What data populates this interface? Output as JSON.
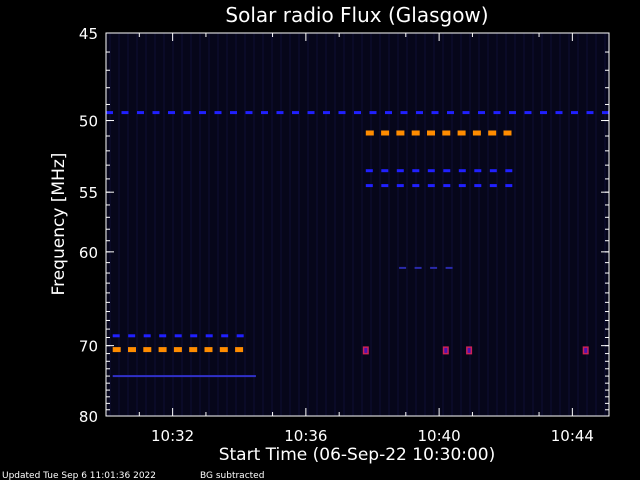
{
  "chart_data": {
    "type": "heatmap",
    "title": "Solar radio Flux (Glasgow)",
    "xlabel": "Start Time (06-Sep-22 10:30:00)",
    "ylabel": "Frequency [MHz]",
    "x_unit": "minutes after 10:30:00",
    "xlim": [
      0.0,
      15.1
    ],
    "ylim": [
      45,
      80
    ],
    "y_scale": "reciprocal",
    "x_ticks": [
      {
        "value": 2,
        "label": "10:32"
      },
      {
        "value": 6,
        "label": "10:36"
      },
      {
        "value": 10,
        "label": "10:40"
      },
      {
        "value": 14,
        "label": "10:44"
      }
    ],
    "y_ticks": [
      {
        "value": 45,
        "label": "45"
      },
      {
        "value": 50,
        "label": "50"
      },
      {
        "value": 55,
        "label": "55"
      },
      {
        "value": 60,
        "label": "60"
      },
      {
        "value": 70,
        "label": "70"
      },
      {
        "value": 80,
        "label": "80"
      }
    ],
    "features": [
      {
        "name": "band-49.5-full",
        "freq_mhz": 49.5,
        "t_start": 0.0,
        "t_end": 15.1,
        "level": "low",
        "color": "#2020ff",
        "dashed": true
      },
      {
        "name": "band-50.8-late",
        "freq_mhz": 50.8,
        "t_start": 7.8,
        "t_end": 12.5,
        "level": "high",
        "color": "#ff8c00",
        "dashed": true
      },
      {
        "name": "band-53.4-late",
        "freq_mhz": 53.4,
        "t_start": 7.8,
        "t_end": 12.5,
        "level": "low",
        "color": "#2020ff",
        "dashed": true
      },
      {
        "name": "band-54.5-late",
        "freq_mhz": 54.5,
        "t_start": 7.8,
        "t_end": 12.5,
        "level": "low",
        "color": "#2020ff",
        "dashed": true
      },
      {
        "name": "band-61.5-burst",
        "freq_mhz": 61.5,
        "t_start": 8.8,
        "t_end": 10.8,
        "level": "faint",
        "color": "#2a2aaa",
        "dashed": true
      },
      {
        "name": "band-68.8-early",
        "freq_mhz": 68.8,
        "t_start": 0.2,
        "t_end": 4.5,
        "level": "low",
        "color": "#2020ff",
        "dashed": true
      },
      {
        "name": "band-70.5-early",
        "freq_mhz": 70.5,
        "t_start": 0.2,
        "t_end": 4.5,
        "level": "high",
        "color": "#ff8c00",
        "dashed": true
      },
      {
        "name": "band-74-early",
        "freq_mhz": 74.0,
        "t_start": 0.2,
        "t_end": 4.5,
        "level": "faint",
        "color": "#3030c8",
        "dashed": false
      }
    ],
    "spots": [
      {
        "t": 7.8,
        "freq_mhz": 70.6
      },
      {
        "t": 10.2,
        "freq_mhz": 70.6
      },
      {
        "t": 10.9,
        "freq_mhz": 70.6
      },
      {
        "t": 14.4,
        "freq_mhz": 70.6
      }
    ],
    "colors": {
      "background": "#000000",
      "plot_background": "#06061a",
      "axis": "#ffffff",
      "low": "#2020ff",
      "high": "#ff8c00",
      "spot": "#cc2255"
    }
  },
  "footer": {
    "updated": "Updated Tue Sep  6 11:01:36 2022",
    "note": "BG subtracted"
  }
}
